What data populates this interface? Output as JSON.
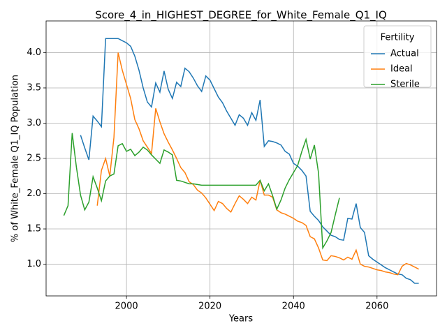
{
  "chart_data": {
    "type": "line",
    "title": "Score_4_in_HIGHEST_DEGREE_for_White_Female_Q1_IQ",
    "x_label": "Years",
    "y_label": "% of White_Female Q1_IQ Population",
    "legend_title": "Fertility",
    "legend_position": "upper right",
    "grid": true,
    "xlim": [
      1980.75,
      2074.25
    ],
    "ylim": [
      0.55,
      4.45
    ],
    "xticks": [
      2000,
      2020,
      2040,
      2060
    ],
    "yticks": [
      {
        "value": 1.0,
        "label": "1.0"
      },
      {
        "value": 1.5,
        "label": "1.5"
      },
      {
        "value": 2.0,
        "label": "2.0"
      },
      {
        "value": 2.5,
        "label": "2.5"
      },
      {
        "value": 3.0,
        "label": "3.0"
      },
      {
        "value": 3.5,
        "label": "3.5"
      },
      {
        "value": 4.0,
        "label": "4.0"
      }
    ],
    "x": [
      1985,
      1986,
      1987,
      1988,
      1989,
      1990,
      1991,
      1992,
      1993,
      1994,
      1995,
      1996,
      1997,
      1998,
      1999,
      2000,
      2001,
      2002,
      2003,
      2004,
      2005,
      2006,
      2007,
      2008,
      2009,
      2010,
      2011,
      2012,
      2013,
      2014,
      2015,
      2016,
      2017,
      2018,
      2019,
      2020,
      2021,
      2022,
      2023,
      2024,
      2025,
      2026,
      2027,
      2028,
      2029,
      2030,
      2031,
      2032,
      2033,
      2034,
      2035,
      2036,
      2037,
      2038,
      2039,
      2040,
      2041,
      2042,
      2043,
      2044,
      2045,
      2046,
      2047,
      2048,
      2049,
      2050,
      2051,
      2052,
      2053,
      2054,
      2055,
      2056,
      2057,
      2058,
      2059,
      2060,
      2061,
      2062,
      2063,
      2064,
      2065,
      2066,
      2067,
      2068,
      2069,
      2070
    ],
    "series": [
      {
        "name": "Actual",
        "color": "#1f77b4",
        "values": [
          null,
          null,
          null,
          null,
          2.83,
          2.65,
          2.48,
          3.1,
          3.03,
          2.95,
          4.2,
          4.2,
          4.2,
          4.2,
          4.17,
          4.14,
          4.09,
          3.95,
          3.75,
          3.5,
          3.3,
          3.23,
          3.57,
          3.44,
          3.74,
          3.48,
          3.35,
          3.58,
          3.52,
          3.78,
          3.73,
          3.64,
          3.53,
          3.45,
          3.67,
          3.61,
          3.49,
          3.37,
          3.29,
          3.17,
          3.07,
          2.97,
          3.12,
          3.07,
          2.97,
          3.15,
          3.04,
          3.33,
          2.67,
          2.75,
          2.74,
          2.72,
          2.69,
          2.6,
          2.56,
          2.43,
          2.39,
          2.33,
          2.25,
          1.75,
          1.68,
          1.62,
          1.53,
          1.47,
          1.41,
          1.39,
          1.35,
          1.34,
          1.65,
          1.64,
          1.86,
          1.52,
          1.45,
          1.12,
          1.07,
          1.03,
          0.99,
          0.95,
          0.92,
          0.89,
          0.86,
          0.85,
          0.8,
          0.78,
          0.73,
          0.73
        ]
      },
      {
        "name": "Ideal",
        "color": "#ff7f0e",
        "values": [
          null,
          null,
          null,
          null,
          null,
          null,
          null,
          null,
          1.83,
          2.33,
          2.5,
          2.25,
          2.8,
          4.0,
          3.75,
          3.55,
          3.35,
          3.05,
          2.92,
          2.75,
          2.66,
          2.57,
          3.21,
          3.02,
          2.85,
          2.73,
          2.62,
          2.5,
          2.37,
          2.3,
          2.17,
          2.13,
          2.05,
          2.01,
          1.94,
          1.85,
          1.76,
          1.89,
          1.86,
          1.79,
          1.74,
          1.86,
          1.97,
          1.92,
          1.86,
          1.95,
          1.91,
          2.19,
          1.98,
          1.98,
          1.95,
          1.77,
          1.73,
          1.71,
          1.68,
          1.65,
          1.61,
          1.59,
          1.55,
          1.39,
          1.36,
          1.23,
          1.06,
          1.05,
          1.12,
          1.11,
          1.09,
          1.06,
          1.1,
          1.07,
          1.2,
          1.0,
          0.97,
          0.96,
          0.94,
          0.92,
          0.91,
          0.89,
          0.88,
          0.86,
          0.85,
          0.97,
          1.01,
          0.99,
          0.96,
          0.93
        ]
      },
      {
        "name": "Sterile",
        "color": "#2ca02c",
        "values": [
          1.69,
          1.83,
          2.86,
          2.38,
          1.98,
          1.77,
          1.88,
          2.24,
          2.08,
          1.9,
          2.18,
          2.25,
          2.28,
          2.68,
          2.71,
          2.6,
          2.63,
          2.54,
          2.59,
          2.66,
          2.62,
          2.55,
          2.49,
          2.43,
          2.62,
          2.59,
          2.55,
          2.19,
          2.18,
          2.16,
          2.14,
          2.14,
          2.13,
          2.12,
          2.12,
          2.12,
          2.12,
          2.12,
          2.12,
          2.12,
          2.12,
          2.12,
          2.12,
          2.12,
          2.12,
          2.12,
          2.12,
          2.19,
          2.04,
          2.14,
          1.97,
          1.78,
          1.91,
          2.08,
          2.2,
          2.3,
          2.4,
          2.6,
          2.77,
          2.49,
          2.69,
          2.29,
          1.23,
          1.33,
          1.45,
          1.7,
          1.94,
          null,
          null,
          null,
          null,
          null,
          null,
          null,
          null,
          null,
          null,
          null,
          null,
          null,
          null,
          null,
          null,
          null,
          null,
          null
        ]
      }
    ]
  }
}
